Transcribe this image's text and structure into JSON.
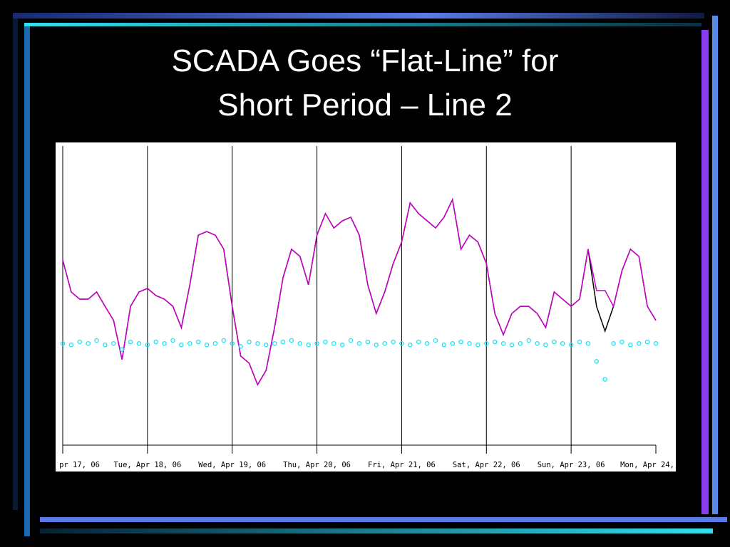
{
  "slide": {
    "title": [
      "SCADA Goes “Flat-Line” for",
      "Short Period – Line 2"
    ]
  },
  "chart_data": {
    "type": "line",
    "xlim": [
      0,
      7
    ],
    "ylim": [
      0,
      100
    ],
    "grid": true,
    "xticks": [
      {
        "value": 0,
        "label": "pr 17, 06"
      },
      {
        "value": 1,
        "label": "Tue, Apr 18, 06"
      },
      {
        "value": 2,
        "label": "Wed, Apr 19, 06"
      },
      {
        "value": 3,
        "label": "Thu, Apr 20, 06"
      },
      {
        "value": 4,
        "label": "Fri, Apr 21, 06"
      },
      {
        "value": 5,
        "label": "Sat, Apr 22, 06"
      },
      {
        "value": 6,
        "label": "Sun, Apr 23, 06"
      },
      {
        "value": 7,
        "label": "Mon, Apr 24,"
      }
    ],
    "x": [
      0,
      0.1,
      0.2,
      0.3,
      0.4,
      0.5,
      0.6,
      0.7,
      0.8,
      0.9,
      1,
      1.1,
      1.2,
      1.3,
      1.4,
      1.5,
      1.6,
      1.7,
      1.8,
      1.9,
      2,
      2.1,
      2.2,
      2.3,
      2.4,
      2.5,
      2.6,
      2.7,
      2.8,
      2.9,
      3,
      3.1,
      3.2,
      3.3,
      3.4,
      3.5,
      3.6,
      3.7,
      3.8,
      3.9,
      4,
      4.1,
      4.2,
      4.3,
      4.4,
      4.5,
      4.6,
      4.7,
      4.8,
      4.9,
      5,
      5.1,
      5.2,
      5.3,
      5.4,
      5.5,
      5.6,
      5.7,
      5.8,
      5.9,
      6,
      6.1,
      6.2,
      6.3,
      6.4,
      6.5,
      6.6,
      6.7,
      6.8,
      6.9,
      7
    ],
    "series": [
      {
        "color": "#000000",
        "marker": "none",
        "values": [
          61.9,
          51.2,
          48.8,
          48.8,
          51.2,
          46.4,
          41.7,
          28.6,
          46.4,
          51.2,
          52.4,
          50,
          48.8,
          46.4,
          39.3,
          53.6,
          70.2,
          71.4,
          70.2,
          65.5,
          46.4,
          29.8,
          27.4,
          20.2,
          25,
          39.3,
          56,
          65.5,
          63.1,
          53.6,
          70.2,
          77.4,
          72.6,
          75,
          76.2,
          70.2,
          53.6,
          44,
          51.2,
          60.7,
          67.9,
          81,
          77.4,
          75,
          72.6,
          76.2,
          82.1,
          65.5,
          70.2,
          67.9,
          60.7,
          44,
          36.9,
          44,
          46.4,
          46.4,
          44,
          39.3,
          51.2,
          48.8,
          46.4,
          48.8,
          65.5,
          46.4,
          38.1,
          46.4,
          58.3,
          65.5,
          63.1,
          46.4,
          41.7
        ]
      },
      {
        "color": "#cc00cc",
        "marker": "none",
        "values": [
          61.9,
          51.2,
          48.8,
          48.8,
          51.2,
          46.4,
          41.7,
          28.6,
          46.4,
          51.2,
          52.4,
          50,
          48.8,
          46.4,
          39.3,
          53.6,
          70.2,
          71.4,
          70.2,
          65.5,
          46.4,
          29.8,
          27.4,
          20.2,
          25,
          39.3,
          56,
          65.5,
          63.1,
          53.6,
          70.2,
          77.4,
          72.6,
          75,
          76.2,
          70.2,
          53.6,
          44,
          51.2,
          60.7,
          67.9,
          81,
          77.4,
          75,
          72.6,
          76.2,
          82.1,
          65.5,
          70.2,
          67.9,
          60.7,
          44,
          36.9,
          44,
          46.4,
          46.4,
          44,
          39.3,
          51.2,
          48.8,
          46.4,
          48.8,
          65.5,
          51.7,
          51.7,
          46.4,
          58.3,
          65.5,
          63.1,
          46.4,
          41.7
        ]
      },
      {
        "color": "#22e0f0",
        "marker": "circle",
        "values": [
          34,
          33.5,
          34.5,
          34,
          35,
          33.5,
          34,
          32,
          34.5,
          34,
          33.5,
          34.5,
          34,
          35,
          33.5,
          34,
          34.5,
          33.5,
          34,
          35,
          34,
          33,
          34.5,
          34,
          33.5,
          34,
          34.5,
          35,
          34,
          33.5,
          34,
          34.5,
          34,
          33.5,
          35,
          34,
          34.5,
          33.5,
          34,
          34.5,
          34,
          33.5,
          34.5,
          34,
          35,
          33.5,
          34,
          34.5,
          34,
          33.5,
          34,
          34.5,
          34,
          33.5,
          34,
          35,
          34,
          33.5,
          34.5,
          34,
          33.5,
          34.5,
          34,
          28,
          22,
          34,
          34.5,
          33.5,
          34,
          34.5,
          34
        ]
      }
    ]
  }
}
